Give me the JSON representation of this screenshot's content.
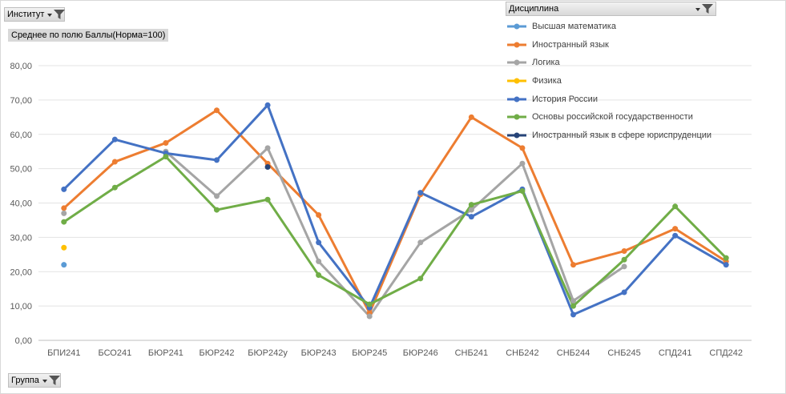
{
  "filters": {
    "institute": "Институт",
    "value_field": "Среднее по полю Баллы(Норма=100)",
    "discipline": "Дисциплина",
    "group": "Группа"
  },
  "chart_data": {
    "type": "line",
    "categories": [
      "БПИ241",
      "БСО241",
      "БЮР241",
      "БЮР242",
      "БЮР242у",
      "БЮР243",
      "БЮР245",
      "БЮР246",
      "СНБ241",
      "СНБ242",
      "СНБ244",
      "СНБ245",
      "СПД241",
      "СПД242"
    ],
    "ylim": [
      0,
      80
    ],
    "yticks": [
      "0,00",
      "10,00",
      "20,00",
      "30,00",
      "40,00",
      "50,00",
      "60,00",
      "70,00",
      "80,00"
    ],
    "grid": "horizontal",
    "legend_position": "top-right",
    "series": [
      {
        "name": "Высшая математика",
        "color": "#5b9bd5",
        "values": [
          22,
          null,
          null,
          null,
          null,
          null,
          null,
          null,
          null,
          null,
          null,
          null,
          null,
          null
        ]
      },
      {
        "name": "Иностранный язык",
        "color": "#ed7d31",
        "values": [
          38.5,
          52,
          57.5,
          67,
          51.5,
          36.5,
          8,
          42.5,
          65,
          56,
          22,
          26,
          32.5,
          23
        ]
      },
      {
        "name": "Логика",
        "color": "#a5a5a5",
        "values": [
          37,
          null,
          55,
          42,
          56,
          23,
          7,
          28.5,
          38,
          51.5,
          11.5,
          21.5,
          null,
          null
        ]
      },
      {
        "name": "Физика",
        "color": "#ffc000",
        "values": [
          27,
          null,
          null,
          null,
          null,
          null,
          null,
          null,
          null,
          null,
          null,
          null,
          null,
          null
        ]
      },
      {
        "name": "История России",
        "color": "#4472c4",
        "values": [
          44,
          58.5,
          54.5,
          52.5,
          68.5,
          28.5,
          9.5,
          43,
          36,
          44,
          7.5,
          14,
          30.5,
          22
        ]
      },
      {
        "name": "Основы российской государственности",
        "color": "#70ad47",
        "values": [
          34.5,
          44.5,
          53.5,
          38,
          41,
          19,
          10.5,
          18,
          39.5,
          43.5,
          10,
          23.5,
          39,
          24
        ]
      },
      {
        "name": "Иностранный язык в сфере юриспруденции",
        "color": "#264478",
        "values": [
          null,
          null,
          null,
          null,
          50.5,
          null,
          null,
          null,
          null,
          null,
          null,
          null,
          null,
          null
        ]
      }
    ]
  }
}
